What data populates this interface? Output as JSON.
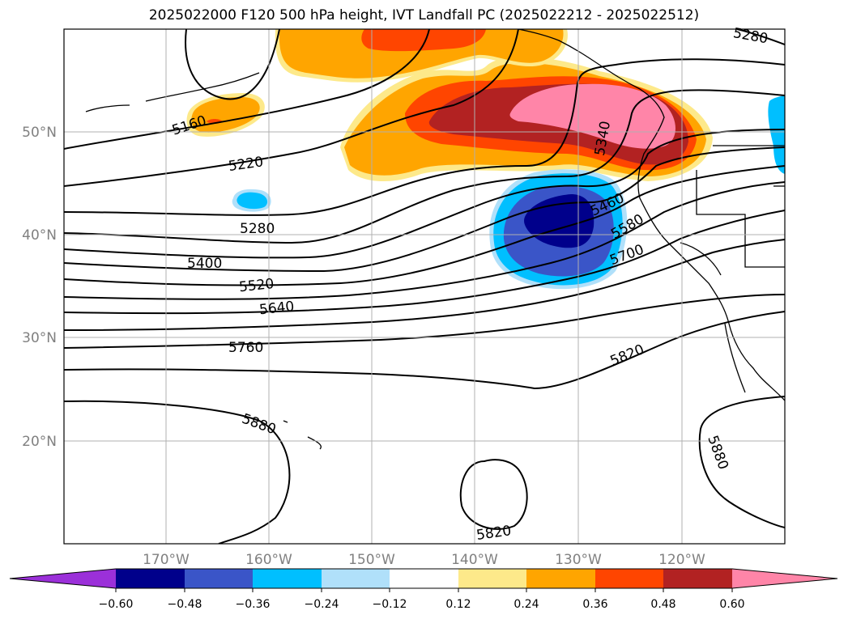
{
  "title": "2025022000 F120 500 hPa height, IVT Landfall PC (2025022212 - 2025022512)",
  "colors": {
    "neg_060": "#9b30d9",
    "neg_048": "#00008b",
    "neg_036": "#3a55c8",
    "neg_024": "#00bfff",
    "neg_012": "#b0e0fa",
    "zero": "#ffffff",
    "pos_012": "#fde98a",
    "pos_024": "#ffa500",
    "pos_036": "#ff4500",
    "pos_048": "#b22222",
    "pos_060": "#ff85a8",
    "contour": "#000000",
    "grid": "#b0b0b0",
    "tick_label": "#808080"
  },
  "axes": {
    "lon_labels": [
      "170°W",
      "160°W",
      "150°W",
      "140°W",
      "130°W",
      "120°W"
    ],
    "lat_labels": [
      "50°N",
      "40°N",
      "30°N",
      "20°N"
    ]
  },
  "colorbar": {
    "labels": [
      "−0.60",
      "−0.48",
      "−0.36",
      "−0.24",
      "−0.12",
      "0.12",
      "0.24",
      "0.36",
      "0.48",
      "0.60"
    ]
  },
  "contour_labels": [
    "5160",
    "5220",
    "5280",
    "5280",
    "5340",
    "5400",
    "5460",
    "5520",
    "5580",
    "5640",
    "5700",
    "5760",
    "5820",
    "5820",
    "5880",
    "5880"
  ]
}
